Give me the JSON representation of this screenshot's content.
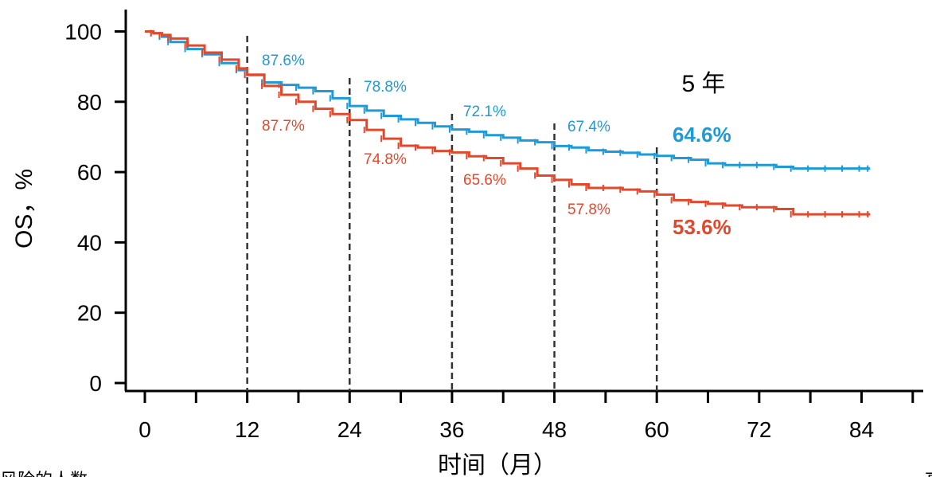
{
  "chart_data": {
    "type": "line",
    "xlabel": "时间（月）",
    "ylabel": "OS，%",
    "xlim": [
      -2,
      92
    ],
    "ylim": [
      -2,
      106
    ],
    "x_ticks": [
      0,
      12,
      24,
      36,
      48,
      60,
      72,
      84
    ],
    "x_ticks_unlabeled": [
      6,
      18,
      30,
      42,
      54,
      66,
      78,
      90
    ],
    "y_ticks": [
      0,
      20,
      40,
      60,
      80,
      100
    ],
    "landmark_times": [
      12,
      24,
      36,
      48,
      60
    ],
    "annotation_title": "5 年",
    "bottom_left_text": "风险的人数",
    "bottom_right_text": "高",
    "grid": false,
    "legend": "none",
    "colors": {
      "blue": "#1f9ad6",
      "red": "#e2492c",
      "axis": "#000000",
      "dashed": "#333333"
    },
    "series": [
      {
        "color": "#1f9ad6",
        "landmarks": [
          {
            "x": 12,
            "label": "87.6%"
          },
          {
            "x": 24,
            "label": "78.8%"
          },
          {
            "x": 36,
            "label": "72.1%"
          },
          {
            "x": 48,
            "label": "67.4%"
          }
        ],
        "final_label": "64.6%",
        "x": [
          0,
          1,
          2,
          3,
          5,
          7,
          9,
          11,
          12,
          14,
          16,
          18,
          20,
          22,
          24,
          26,
          28,
          30,
          32,
          34,
          36,
          38,
          40,
          42,
          44,
          46,
          48,
          50,
          52,
          54,
          56,
          58,
          60,
          62,
          64,
          66,
          68,
          70,
          72,
          74,
          76,
          78,
          80,
          82,
          84,
          85
        ],
        "y": [
          100,
          99.5,
          98.5,
          97,
          95,
          93.5,
          91,
          89,
          87.6,
          85.5,
          84.8,
          84,
          83,
          81,
          78.8,
          77.5,
          76,
          75,
          74,
          73,
          72.1,
          71.5,
          70.5,
          69.8,
          69,
          68.5,
          67.4,
          67,
          66.2,
          65.8,
          65.5,
          65,
          64.6,
          64,
          63.5,
          62.5,
          62,
          62,
          62,
          61.5,
          61,
          61,
          61,
          61,
          61,
          61
        ]
      },
      {
        "color": "#e2492c",
        "landmarks": [
          {
            "x": 12,
            "label": "87.7%"
          },
          {
            "x": 24,
            "label": "74.8%"
          },
          {
            "x": 36,
            "label": "65.6%"
          },
          {
            "x": 48,
            "label": "57.8%"
          }
        ],
        "final_label": "53.6%",
        "x": [
          0,
          1,
          2,
          3,
          5,
          7,
          9,
          11,
          12,
          14,
          16,
          18,
          20,
          22,
          24,
          26,
          28,
          30,
          32,
          34,
          36,
          38,
          40,
          42,
          44,
          46,
          48,
          50,
          52,
          54,
          56,
          58,
          60,
          62,
          64,
          66,
          68,
          70,
          72,
          74,
          76,
          78,
          80,
          82,
          84,
          85
        ],
        "y": [
          100,
          99.5,
          99,
          98,
          96,
          94,
          92,
          89.5,
          87.7,
          84.5,
          82,
          80,
          78,
          76.5,
          74.8,
          72,
          69.5,
          67.5,
          67,
          66,
          65.6,
          64.5,
          64,
          62.5,
          61,
          59,
          57.8,
          56.5,
          55.5,
          55.5,
          55,
          54.5,
          53.6,
          52,
          51.5,
          51,
          50.5,
          50,
          50,
          49.5,
          48,
          48,
          48,
          48,
          48,
          48
        ]
      }
    ]
  }
}
